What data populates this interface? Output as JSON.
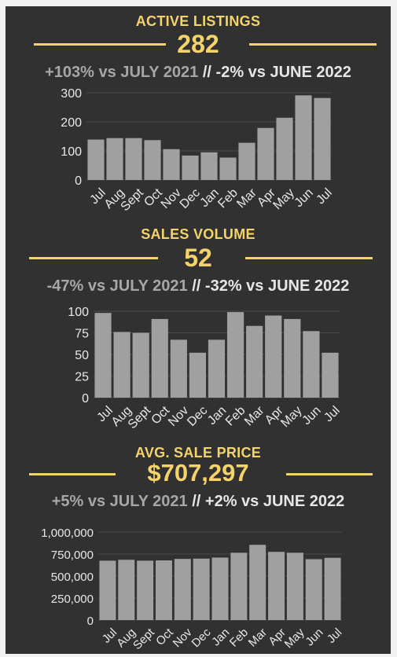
{
  "colors": {
    "accent": "#f4d46a",
    "bar": "#a0a0a0",
    "panel": "#313131",
    "text_light": "#e6e6e6",
    "text_muted": "#a7a7a7"
  },
  "sections": [
    {
      "title": "ACTIVE LISTINGS",
      "value": "282",
      "compare_year": "+103% vs JULY 2021",
      "separator": "//",
      "compare_month": "-2% vs JUNE 2022"
    },
    {
      "title": "SALES VOLUME",
      "value": "52",
      "compare_year": "-47% vs JULY 2021",
      "separator": "//",
      "compare_month": "-32% vs JUNE 2022"
    },
    {
      "title": "AVG. SALE PRICE",
      "value": "$707,297",
      "compare_year": "+5% vs JULY 2021",
      "separator": "//",
      "compare_month": "+2% vs JUNE 2022"
    }
  ],
  "chart_data": [
    {
      "type": "bar",
      "categories": [
        "Jul",
        "Aug",
        "Sept",
        "Oct",
        "Nov",
        "Dec",
        "Jan",
        "Feb",
        "Mar",
        "Apr",
        "May",
        "Jun",
        "Jul"
      ],
      "values": [
        139,
        144,
        144,
        137,
        106,
        84,
        95,
        77,
        128,
        179,
        214,
        291,
        282
      ],
      "ylim": [
        0,
        300
      ],
      "yticks": [
        0,
        100,
        200,
        300
      ],
      "ytick_labels": [
        "0",
        "100",
        "200",
        "300"
      ],
      "grid": true,
      "xlabel": "",
      "ylabel": ""
    },
    {
      "type": "bar",
      "categories": [
        "Jul",
        "Aug",
        "Sept",
        "Oct",
        "Nov",
        "Dec",
        "Jan",
        "Feb",
        "Mar",
        "Apr",
        "May",
        "Jun",
        "Jul"
      ],
      "values": [
        98,
        76,
        75,
        91,
        67,
        52,
        67,
        99,
        83,
        95,
        91,
        77,
        52
      ],
      "ylim": [
        0,
        100
      ],
      "yticks": [
        0,
        25,
        50,
        75,
        100
      ],
      "ytick_labels": [
        "0",
        "25",
        "50",
        "75",
        "100"
      ],
      "grid": true,
      "xlabel": "",
      "ylabel": ""
    },
    {
      "type": "bar",
      "categories": [
        "Jul",
        "Aug",
        "Sept",
        "Oct",
        "Nov",
        "Dec",
        "Jan",
        "Feb",
        "Mar",
        "Apr",
        "May",
        "Jun",
        "Jul"
      ],
      "values": [
        675000,
        685000,
        675000,
        678000,
        695000,
        698000,
        710000,
        765000,
        855000,
        775000,
        765000,
        692000,
        707297
      ],
      "ylim": [
        0,
        1000000
      ],
      "yticks": [
        0,
        250000,
        500000,
        750000,
        1000000
      ],
      "ytick_labels": [
        "0",
        "250,000",
        "500,000",
        "750,000",
        "1,000,000"
      ],
      "grid": true,
      "xlabel": "",
      "ylabel": ""
    }
  ]
}
